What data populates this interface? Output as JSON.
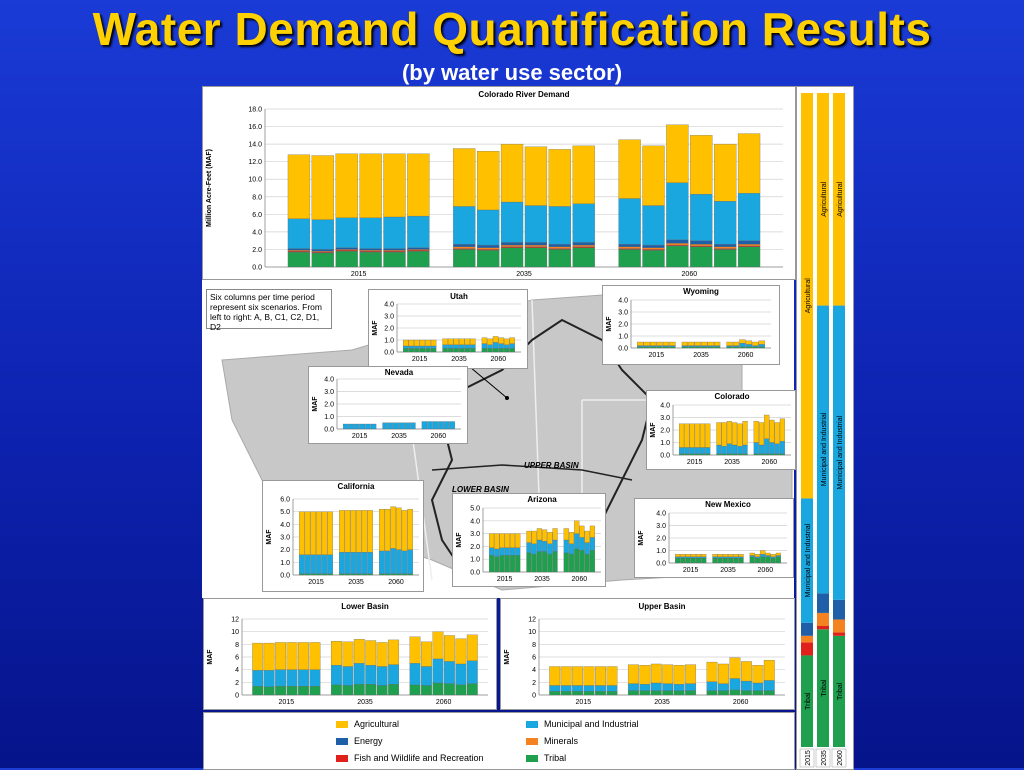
{
  "slide": {
    "title": "Water Demand Quantification Results",
    "subtitle": "(by water use sector)",
    "note": "Six columns per time period represent six scenarios. From left to right: A, B, C1, C2, D1, D2",
    "upper_basin_label": "UPPER BASIN",
    "lower_basin_label": "LOWER BASIN"
  },
  "colors": {
    "Agricultural": "#ffc000",
    "Municipal and Industrial": "#1aa7e0",
    "Energy": "#1f5fa8",
    "Minerals": "#f58220",
    "Fish and Wildlife and Recreation": "#e0201b",
    "Tribal": "#1fa04f"
  },
  "legend": [
    "Agricultural",
    "Municipal and Industrial",
    "Energy",
    "Minerals",
    "Fish and Wildlife and Recreation",
    "Tribal"
  ],
  "chart_data": [
    {
      "id": "colorado",
      "type": "bar",
      "stacked": true,
      "title": "Colorado River Demand",
      "ylabel": "Million Acre-Feet (MAF)",
      "ylim": [
        0,
        18
      ],
      "yticks": [
        "0.0",
        "2.0",
        "4.0",
        "6.0",
        "8.0",
        "10.0",
        "12.0",
        "14.0",
        "16.0",
        "18.0"
      ],
      "groups": [
        "2015",
        "2035",
        "2060"
      ],
      "series_order": [
        "Tribal",
        "Fish and Wildlife and Recreation",
        "Minerals",
        "Energy",
        "Municipal and Industrial",
        "Agricultural"
      ],
      "bars": [
        [
          1.7,
          0.1,
          0.1,
          0.2,
          3.4,
          7.3
        ],
        [
          1.6,
          0.1,
          0.1,
          0.2,
          3.4,
          7.3
        ],
        [
          1.8,
          0.1,
          0.1,
          0.2,
          3.4,
          7.3
        ],
        [
          1.7,
          0.1,
          0.1,
          0.2,
          3.5,
          7.3
        ],
        [
          1.7,
          0.1,
          0.1,
          0.2,
          3.6,
          7.2
        ],
        [
          1.8,
          0.1,
          0.1,
          0.2,
          3.6,
          7.1
        ],
        [
          2.0,
          0.1,
          0.2,
          0.3,
          4.3,
          6.6
        ],
        [
          1.9,
          0.1,
          0.2,
          0.3,
          4.0,
          6.7
        ],
        [
          2.2,
          0.1,
          0.2,
          0.3,
          4.6,
          6.6
        ],
        [
          2.2,
          0.1,
          0.2,
          0.3,
          4.2,
          6.7
        ],
        [
          2.0,
          0.1,
          0.2,
          0.3,
          4.3,
          6.5
        ],
        [
          2.2,
          0.1,
          0.2,
          0.3,
          4.4,
          6.6
        ],
        [
          2.0,
          0.1,
          0.2,
          0.3,
          5.2,
          6.7
        ],
        [
          1.9,
          0.1,
          0.2,
          0.3,
          4.5,
          6.8
        ],
        [
          2.4,
          0.1,
          0.2,
          0.4,
          6.5,
          6.6
        ],
        [
          2.3,
          0.1,
          0.2,
          0.4,
          5.3,
          6.7
        ],
        [
          2.0,
          0.1,
          0.2,
          0.3,
          4.9,
          6.5
        ],
        [
          2.3,
          0.1,
          0.2,
          0.4,
          5.4,
          6.8
        ]
      ]
    },
    {
      "id": "utah",
      "type": "bar",
      "stacked": true,
      "title": "Utah",
      "ylabel": "MAF",
      "ylim": [
        0,
        4
      ],
      "yticks": [
        "0.0",
        "1.0",
        "2.0",
        "3.0",
        "4.0"
      ],
      "groups": [
        "2015",
        "2035",
        "2060"
      ],
      "series_order": [
        "Tribal",
        "Municipal and Industrial",
        "Agricultural"
      ],
      "bars": [
        [
          0.3,
          0.2,
          0.5
        ],
        [
          0.3,
          0.2,
          0.5
        ],
        [
          0.3,
          0.2,
          0.5
        ],
        [
          0.3,
          0.2,
          0.5
        ],
        [
          0.3,
          0.2,
          0.5
        ],
        [
          0.3,
          0.2,
          0.5
        ],
        [
          0.3,
          0.3,
          0.5
        ],
        [
          0.3,
          0.3,
          0.5
        ],
        [
          0.3,
          0.3,
          0.5
        ],
        [
          0.3,
          0.3,
          0.5
        ],
        [
          0.3,
          0.3,
          0.5
        ],
        [
          0.3,
          0.3,
          0.5
        ],
        [
          0.3,
          0.4,
          0.5
        ],
        [
          0.3,
          0.3,
          0.5
        ],
        [
          0.3,
          0.5,
          0.5
        ],
        [
          0.3,
          0.4,
          0.5
        ],
        [
          0.3,
          0.3,
          0.5
        ],
        [
          0.3,
          0.4,
          0.5
        ]
      ]
    },
    {
      "id": "wyoming",
      "type": "bar",
      "stacked": true,
      "title": "Wyoming",
      "ylabel": "MAF",
      "ylim": [
        0,
        4
      ],
      "yticks": [
        "0.0",
        "1.0",
        "2.0",
        "3.0",
        "4.0"
      ],
      "groups": [
        "2015",
        "2035",
        "2060"
      ],
      "series_order": [
        "Tribal",
        "Municipal and Industrial",
        "Agricultural"
      ],
      "bars": [
        [
          0.1,
          0.1,
          0.3
        ],
        [
          0.1,
          0.1,
          0.3
        ],
        [
          0.1,
          0.1,
          0.3
        ],
        [
          0.1,
          0.1,
          0.3
        ],
        [
          0.1,
          0.1,
          0.3
        ],
        [
          0.1,
          0.1,
          0.3
        ],
        [
          0.1,
          0.1,
          0.3
        ],
        [
          0.1,
          0.1,
          0.3
        ],
        [
          0.1,
          0.1,
          0.3
        ],
        [
          0.1,
          0.1,
          0.3
        ],
        [
          0.1,
          0.1,
          0.3
        ],
        [
          0.1,
          0.1,
          0.3
        ],
        [
          0.1,
          0.1,
          0.3
        ],
        [
          0.1,
          0.1,
          0.3
        ],
        [
          0.1,
          0.3,
          0.3
        ],
        [
          0.1,
          0.2,
          0.3
        ],
        [
          0.1,
          0.1,
          0.3
        ],
        [
          0.1,
          0.2,
          0.3
        ]
      ]
    },
    {
      "id": "nevada",
      "type": "bar",
      "stacked": true,
      "title": "Nevada",
      "ylabel": "MAF",
      "ylim": [
        0,
        4
      ],
      "yticks": [
        "0.0",
        "1.0",
        "2.0",
        "3.0",
        "4.0"
      ],
      "groups": [
        "2015",
        "2035",
        "2060"
      ],
      "series_order": [
        "Municipal and Industrial"
      ],
      "bars": [
        [
          0.4
        ],
        [
          0.4
        ],
        [
          0.4
        ],
        [
          0.4
        ],
        [
          0.4
        ],
        [
          0.4
        ],
        [
          0.5
        ],
        [
          0.5
        ],
        [
          0.5
        ],
        [
          0.5
        ],
        [
          0.5
        ],
        [
          0.5
        ],
        [
          0.6
        ],
        [
          0.6
        ],
        [
          0.6
        ],
        [
          0.6
        ],
        [
          0.6
        ],
        [
          0.6
        ]
      ]
    },
    {
      "id": "colorado_state",
      "type": "bar",
      "stacked": true,
      "title": "Colorado",
      "ylabel": "MAF",
      "ylim": [
        0,
        4
      ],
      "yticks": [
        "0.0",
        "1.0",
        "2.0",
        "3.0",
        "4.0"
      ],
      "groups": [
        "2015",
        "2035",
        "2060"
      ],
      "series_order": [
        "Tribal",
        "Municipal and Industrial",
        "Agricultural"
      ],
      "bars": [
        [
          0.1,
          0.5,
          1.9
        ],
        [
          0.1,
          0.5,
          1.9
        ],
        [
          0.1,
          0.5,
          1.9
        ],
        [
          0.1,
          0.5,
          1.9
        ],
        [
          0.1,
          0.5,
          1.9
        ],
        [
          0.1,
          0.5,
          1.9
        ],
        [
          0.1,
          0.7,
          1.8
        ],
        [
          0.1,
          0.6,
          1.9
        ],
        [
          0.1,
          0.8,
          1.8
        ],
        [
          0.1,
          0.7,
          1.8
        ],
        [
          0.1,
          0.6,
          1.8
        ],
        [
          0.1,
          0.7,
          1.9
        ],
        [
          0.1,
          0.9,
          1.7
        ],
        [
          0.1,
          0.7,
          1.8
        ],
        [
          0.1,
          1.2,
          1.9
        ],
        [
          0.1,
          0.9,
          1.8
        ],
        [
          0.1,
          0.8,
          1.7
        ],
        [
          0.1,
          1.0,
          1.8
        ]
      ]
    },
    {
      "id": "california",
      "type": "bar",
      "stacked": true,
      "title": "California",
      "ylabel": "MAF",
      "ylim": [
        0,
        6
      ],
      "yticks": [
        "0.0",
        "1.0",
        "2.0",
        "3.0",
        "4.0",
        "5.0",
        "6.0"
      ],
      "groups": [
        "2015",
        "2035",
        "2060"
      ],
      "series_order": [
        "Tribal",
        "Municipal and Industrial",
        "Agricultural"
      ],
      "bars": [
        [
          0.1,
          1.5,
          3.4
        ],
        [
          0.1,
          1.5,
          3.4
        ],
        [
          0.1,
          1.5,
          3.4
        ],
        [
          0.1,
          1.5,
          3.4
        ],
        [
          0.1,
          1.5,
          3.4
        ],
        [
          0.1,
          1.5,
          3.4
        ],
        [
          0.1,
          1.7,
          3.3
        ],
        [
          0.1,
          1.7,
          3.3
        ],
        [
          0.1,
          1.7,
          3.3
        ],
        [
          0.1,
          1.7,
          3.3
        ],
        [
          0.1,
          1.7,
          3.3
        ],
        [
          0.1,
          1.7,
          3.3
        ],
        [
          0.1,
          1.8,
          3.3
        ],
        [
          0.1,
          1.8,
          3.3
        ],
        [
          0.1,
          2.0,
          3.3
        ],
        [
          0.1,
          1.9,
          3.3
        ],
        [
          0.1,
          1.8,
          3.2
        ],
        [
          0.1,
          1.9,
          3.2
        ]
      ]
    },
    {
      "id": "arizona",
      "type": "bar",
      "stacked": true,
      "title": "Arizona",
      "ylabel": "MAF",
      "ylim": [
        0,
        5
      ],
      "yticks": [
        "0.0",
        "1.0",
        "2.0",
        "3.0",
        "4.0",
        "5.0"
      ],
      "groups": [
        "2015",
        "2035",
        "2060"
      ],
      "series_order": [
        "Tribal",
        "Municipal and Industrial",
        "Agricultural"
      ],
      "bars": [
        [
          1.3,
          0.6,
          1.1
        ],
        [
          1.2,
          0.6,
          1.2
        ],
        [
          1.3,
          0.6,
          1.1
        ],
        [
          1.3,
          0.6,
          1.1
        ],
        [
          1.3,
          0.6,
          1.1
        ],
        [
          1.3,
          0.6,
          1.1
        ],
        [
          1.5,
          0.8,
          0.9
        ],
        [
          1.4,
          0.8,
          1.0
        ],
        [
          1.6,
          0.9,
          0.9
        ],
        [
          1.6,
          0.8,
          0.9
        ],
        [
          1.4,
          0.8,
          0.9
        ],
        [
          1.6,
          0.9,
          0.9
        ],
        [
          1.5,
          1.0,
          0.9
        ],
        [
          1.4,
          0.8,
          0.9
        ],
        [
          1.8,
          1.2,
          1.0
        ],
        [
          1.7,
          1.0,
          0.9
        ],
        [
          1.4,
          0.9,
          0.9
        ],
        [
          1.7,
          1.0,
          0.9
        ]
      ]
    },
    {
      "id": "new_mexico",
      "type": "bar",
      "stacked": true,
      "title": "New Mexico",
      "ylabel": "MAF",
      "ylim": [
        0,
        4
      ],
      "yticks": [
        "0.0",
        "1.0",
        "2.0",
        "3.0",
        "4.0"
      ],
      "groups": [
        "2015",
        "2035",
        "2060"
      ],
      "series_order": [
        "Tribal",
        "Municipal and Industrial",
        "Agricultural"
      ],
      "bars": [
        [
          0.4,
          0.1,
          0.2
        ],
        [
          0.4,
          0.1,
          0.2
        ],
        [
          0.4,
          0.1,
          0.2
        ],
        [
          0.4,
          0.1,
          0.2
        ],
        [
          0.4,
          0.1,
          0.2
        ],
        [
          0.4,
          0.1,
          0.2
        ],
        [
          0.4,
          0.1,
          0.2
        ],
        [
          0.4,
          0.1,
          0.2
        ],
        [
          0.4,
          0.1,
          0.2
        ],
        [
          0.4,
          0.1,
          0.2
        ],
        [
          0.4,
          0.1,
          0.2
        ],
        [
          0.4,
          0.1,
          0.2
        ],
        [
          0.5,
          0.1,
          0.2
        ],
        [
          0.4,
          0.1,
          0.2
        ],
        [
          0.5,
          0.2,
          0.3
        ],
        [
          0.5,
          0.1,
          0.2
        ],
        [
          0.4,
          0.1,
          0.2
        ],
        [
          0.5,
          0.1,
          0.2
        ]
      ]
    },
    {
      "id": "lower_basin",
      "type": "bar",
      "stacked": true,
      "title": "Lower Basin",
      "ylabel": "MAF",
      "ylim": [
        0,
        12
      ],
      "yticks": [
        "0",
        "2",
        "4",
        "6",
        "8",
        "10",
        "12"
      ],
      "groups": [
        "2015",
        "2035",
        "2060"
      ],
      "series_order": [
        "Tribal",
        "Municipal and Industrial",
        "Agricultural"
      ],
      "bars": [
        [
          1.4,
          2.5,
          4.3
        ],
        [
          1.3,
          2.6,
          4.3
        ],
        [
          1.4,
          2.6,
          4.3
        ],
        [
          1.4,
          2.6,
          4.3
        ],
        [
          1.4,
          2.6,
          4.3
        ],
        [
          1.4,
          2.6,
          4.3
        ],
        [
          1.6,
          3.1,
          3.8
        ],
        [
          1.5,
          3.0,
          3.9
        ],
        [
          1.7,
          3.3,
          3.8
        ],
        [
          1.7,
          3.0,
          3.9
        ],
        [
          1.5,
          3.0,
          3.8
        ],
        [
          1.7,
          3.1,
          3.9
        ],
        [
          1.6,
          3.4,
          4.2
        ],
        [
          1.5,
          3.0,
          3.9
        ],
        [
          1.9,
          3.8,
          4.3
        ],
        [
          1.8,
          3.5,
          4.1
        ],
        [
          1.6,
          3.3,
          4.0
        ],
        [
          1.8,
          3.6,
          4.1
        ]
      ]
    },
    {
      "id": "upper_basin",
      "type": "bar",
      "stacked": true,
      "title": "Upper Basin",
      "ylabel": "MAF",
      "ylim": [
        0,
        12
      ],
      "yticks": [
        "0",
        "2",
        "4",
        "6",
        "8",
        "10",
        "12"
      ],
      "groups": [
        "2015",
        "2035",
        "2060"
      ],
      "series_order": [
        "Tribal",
        "Municipal and Industrial",
        "Agricultural"
      ],
      "bars": [
        [
          0.6,
          0.9,
          3.0
        ],
        [
          0.6,
          0.9,
          3.0
        ],
        [
          0.6,
          0.9,
          3.0
        ],
        [
          0.6,
          0.9,
          3.0
        ],
        [
          0.6,
          0.9,
          3.0
        ],
        [
          0.6,
          0.9,
          3.0
        ],
        [
          0.7,
          1.1,
          3.0
        ],
        [
          0.7,
          1.0,
          3.0
        ],
        [
          0.7,
          1.2,
          3.0
        ],
        [
          0.7,
          1.1,
          3.0
        ],
        [
          0.7,
          1.0,
          3.0
        ],
        [
          0.7,
          1.1,
          3.0
        ],
        [
          0.7,
          1.4,
          3.1
        ],
        [
          0.7,
          1.1,
          3.1
        ],
        [
          0.8,
          1.8,
          3.3
        ],
        [
          0.7,
          1.5,
          3.1
        ],
        [
          0.7,
          1.2,
          2.8
        ],
        [
          0.7,
          1.6,
          3.2
        ]
      ]
    },
    {
      "id": "shares",
      "type": "bar",
      "stacked": true,
      "title": "",
      "categories": [
        "2015",
        "2035",
        "2060"
      ],
      "series_order": [
        "Tribal",
        "Fish and Wildlife and Recreation",
        "Minerals",
        "Energy",
        "Municipal and Industrial",
        "Agricultural"
      ],
      "percent": [
        [
          14,
          2,
          1,
          2,
          19,
          62
        ],
        [
          18,
          0.5,
          2,
          3,
          44,
          32.5
        ],
        [
          17,
          0.5,
          2,
          3,
          45,
          32.5
        ]
      ],
      "bar_labels": [
        "Tribal",
        "Municipal and Industrial",
        "Agricultural"
      ]
    }
  ]
}
